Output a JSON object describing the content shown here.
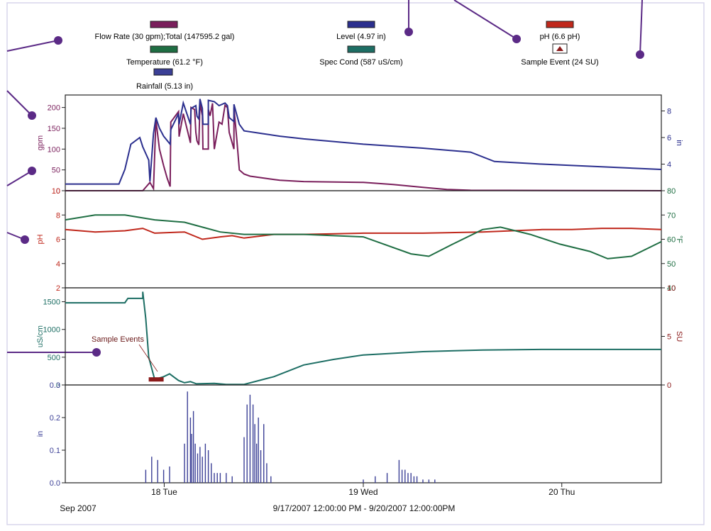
{
  "colors": {
    "flow": "#7a1f5c",
    "level": "#2b2f8e",
    "temperature": "#1f6e43",
    "ph": "#c0281c",
    "spec_cond": "#1d6e64",
    "rainfall": "#3b3f96",
    "sample_event": "#8b1a1a",
    "callout": "#5b2a86",
    "frame": "#d9d6ec"
  },
  "legend": {
    "flow": "Flow Rate (30 gpm);Total (147595.2 gal)",
    "level": "Level (4.97 in)",
    "ph": "pH (6.6 pH)",
    "temperature": "Temperature (61.2 °F)",
    "spec_cond": "Spec Cond (587 uS/cm)",
    "sample_event": "Sample Event (24 SU)",
    "rainfall": "Rainfall (5.13 in)"
  },
  "annotation": "Sample Events",
  "footer": {
    "left": "Sep 2007",
    "center": "9/17/2007  12:00:00 PM - 9/20/2007  12:00:00PM"
  },
  "chart_data": [
    {
      "type": "line",
      "panel": "flow-level",
      "ylabel_left": "gpm",
      "ylabel_right": "in",
      "ylim_left": [
        0,
        230
      ],
      "ylim_right": [
        2,
        9.2
      ],
      "left_ticks": [
        "0",
        "50",
        "100",
        "150",
        "200"
      ],
      "right_ticks": [
        "4",
        "6",
        "8"
      ],
      "series": [
        {
          "name": "Flow Rate",
          "axis": "left",
          "x": [
            0,
            0.13,
            0.142,
            0.148,
            0.152,
            0.158,
            0.165,
            0.171,
            0.176,
            0.177,
            0.19,
            0.191,
            0.198,
            0.21,
            0.211,
            0.217,
            0.219,
            0.221,
            0.224,
            0.226,
            0.23,
            0.231,
            0.24,
            0.24,
            0.243,
            0.247,
            0.25,
            0.258,
            0.263,
            0.268,
            0.272,
            0.275,
            0.283,
            0.283,
            0.288,
            0.292,
            0.3,
            0.31,
            0.325,
            0.345,
            0.36,
            0.4,
            0.5,
            0.55,
            0.6,
            0.64,
            0.68,
            1.0
          ],
          "y": [
            0,
            0,
            20,
            5,
            170,
            100,
            60,
            30,
            10,
            165,
            190,
            130,
            185,
            115,
            200,
            195,
            140,
            120,
            110,
            210,
            180,
            100,
            100,
            195,
            180,
            210,
            100,
            165,
            160,
            205,
            200,
            140,
            100,
            200,
            120,
            50,
            40,
            35,
            32,
            28,
            25,
            22,
            20,
            15,
            8,
            3,
            1,
            0
          ]
        },
        {
          "name": "Level",
          "axis": "right",
          "x": [
            0,
            0.09,
            0.1,
            0.11,
            0.125,
            0.13,
            0.14,
            0.142,
            0.148,
            0.152,
            0.158,
            0.165,
            0.176,
            0.177,
            0.19,
            0.191,
            0.198,
            0.21,
            0.211,
            0.219,
            0.221,
            0.224,
            0.226,
            0.23,
            0.231,
            0.24,
            0.24,
            0.25,
            0.258,
            0.268,
            0.272,
            0.275,
            0.283,
            0.283,
            0.292,
            0.3,
            0.33,
            0.36,
            0.4,
            0.5,
            0.6,
            0.68,
            0.72,
            0.8,
            1.0
          ],
          "y": [
            2.5,
            2.5,
            3.6,
            5.5,
            6.0,
            5.3,
            4.3,
            2.7,
            6.3,
            7.5,
            6.7,
            6.1,
            5.5,
            6.6,
            7.8,
            7.0,
            8.6,
            7.0,
            8.2,
            8.4,
            7.6,
            7.4,
            8.9,
            8.2,
            7.0,
            7.0,
            8.8,
            8.7,
            8.4,
            8.6,
            8.4,
            7.5,
            7.2,
            8.5,
            7.0,
            6.5,
            6.3,
            6.1,
            5.9,
            5.5,
            5.2,
            4.9,
            4.2,
            4.0,
            3.6
          ]
        }
      ]
    },
    {
      "type": "line",
      "panel": "ph-temperature",
      "ylabel_left": "pH",
      "ylabel_right": "°F",
      "ylim_left": [
        2,
        10
      ],
      "ylim_right": [
        40,
        80
      ],
      "left_ticks": [
        "2",
        "4",
        "6",
        "8",
        "10"
      ],
      "right_ticks": [
        "40",
        "50",
        "60",
        "70",
        "80"
      ],
      "series": [
        {
          "name": "pH",
          "axis": "left",
          "x": [
            0,
            0.05,
            0.1,
            0.13,
            0.15,
            0.2,
            0.23,
            0.26,
            0.28,
            0.3,
            0.35,
            0.4,
            0.5,
            0.6,
            0.7,
            0.75,
            0.8,
            0.85,
            0.9,
            0.95,
            1.0
          ],
          "y": [
            6.8,
            6.6,
            6.7,
            6.9,
            6.5,
            6.6,
            6.0,
            6.2,
            6.3,
            6.1,
            6.4,
            6.4,
            6.5,
            6.5,
            6.6,
            6.7,
            6.8,
            6.8,
            6.9,
            6.9,
            6.8
          ]
        },
        {
          "name": "Temperature",
          "axis": "right",
          "x": [
            0,
            0.05,
            0.1,
            0.15,
            0.2,
            0.23,
            0.26,
            0.3,
            0.35,
            0.4,
            0.5,
            0.58,
            0.61,
            0.65,
            0.7,
            0.73,
            0.78,
            0.83,
            0.88,
            0.91,
            0.95,
            1.0
          ],
          "y": [
            68,
            70,
            70,
            68,
            67,
            65,
            63,
            62,
            62,
            62,
            61,
            54,
            53,
            58,
            64,
            65,
            62,
            58,
            55,
            52,
            53,
            59
          ]
        }
      ]
    },
    {
      "type": "line",
      "panel": "spec-cond",
      "ylabel_left": "uS/cm",
      "ylabel_right": "SU",
      "ylim_left": [
        0,
        1750
      ],
      "ylim_right": [
        0,
        10
      ],
      "left_ticks": [
        "0",
        "500",
        "1000",
        "1500"
      ],
      "right_ticks": [
        "0",
        "5",
        "10"
      ],
      "sample_event": {
        "x": [
          0.14,
          0.165
        ],
        "y": 100
      },
      "series": [
        {
          "name": "Spec Cond",
          "axis": "left",
          "x": [
            0,
            0.1,
            0.105,
            0.13,
            0.13,
            0.135,
            0.14,
            0.15,
            0.165,
            0.175,
            0.19,
            0.2,
            0.21,
            0.22,
            0.25,
            0.27,
            0.3,
            0.35,
            0.4,
            0.45,
            0.5,
            0.6,
            0.7,
            0.8,
            0.9,
            1.0
          ],
          "y": [
            1480,
            1480,
            1560,
            1560,
            1680,
            1200,
            500,
            100,
            150,
            200,
            80,
            40,
            60,
            20,
            30,
            10,
            10,
            150,
            360,
            460,
            540,
            600,
            630,
            640,
            640,
            640
          ]
        }
      ]
    },
    {
      "type": "bar",
      "panel": "rainfall",
      "ylabel": "in",
      "ylim": [
        0,
        0.3
      ],
      "left_ticks": [
        "0.0",
        "0.1",
        "0.2",
        "0.3"
      ],
      "x_ticks": [
        "18 Tue",
        "19 Wed",
        "20 Thu"
      ],
      "x_tick_positions": [
        0.166,
        0.5,
        0.833
      ],
      "series": [
        {
          "name": "Rainfall",
          "x": [
            0.135,
            0.145,
            0.155,
            0.165,
            0.175,
            0.2,
            0.205,
            0.21,
            0.212,
            0.215,
            0.218,
            0.222,
            0.226,
            0.23,
            0.235,
            0.24,
            0.245,
            0.25,
            0.255,
            0.26,
            0.27,
            0.28,
            0.3,
            0.305,
            0.31,
            0.315,
            0.318,
            0.321,
            0.324,
            0.328,
            0.333,
            0.338,
            0.345,
            0.5,
            0.52,
            0.54,
            0.56,
            0.565,
            0.57,
            0.575,
            0.58,
            0.585,
            0.59,
            0.6,
            0.61,
            0.62
          ],
          "y": [
            0.04,
            0.08,
            0.07,
            0.04,
            0.05,
            0.12,
            0.28,
            0.2,
            0.15,
            0.22,
            0.12,
            0.09,
            0.11,
            0.08,
            0.12,
            0.1,
            0.06,
            0.03,
            0.03,
            0.03,
            0.03,
            0.02,
            0.14,
            0.24,
            0.27,
            0.24,
            0.18,
            0.12,
            0.2,
            0.1,
            0.18,
            0.06,
            0.02,
            0.01,
            0.02,
            0.03,
            0.07,
            0.04,
            0.04,
            0.03,
            0.03,
            0.02,
            0.02,
            0.01,
            0.01,
            0.01
          ]
        }
      ]
    }
  ]
}
